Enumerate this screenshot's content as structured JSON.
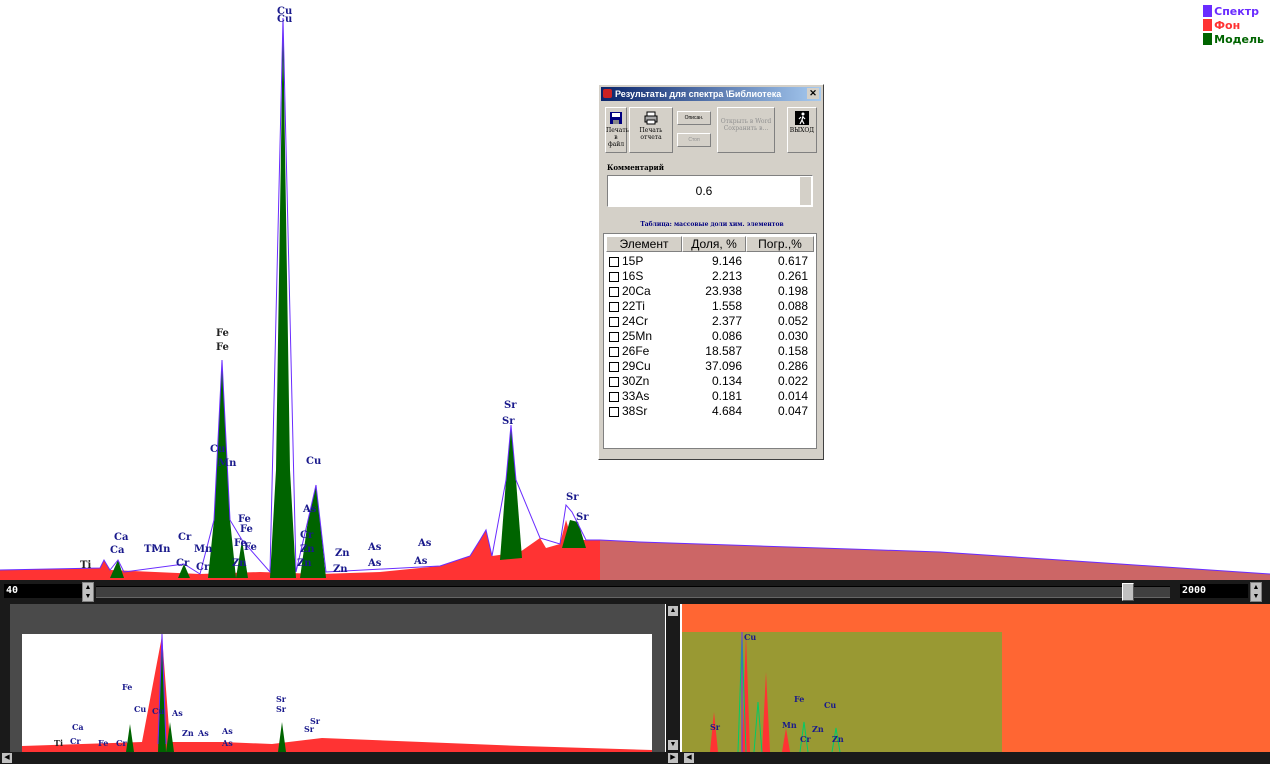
{
  "legend": [
    {
      "label": "Спектр",
      "color": "#6a2cff"
    },
    {
      "label": "Фон",
      "color": "#ff3333"
    },
    {
      "label": "Модель",
      "color": "#006400"
    }
  ],
  "spectrum_labels": [
    "Cu",
    "Cu",
    "Fe",
    "Fe",
    "Cu",
    "Mn",
    "Cu",
    "As",
    "Cr",
    "Zn",
    "Zn",
    "Zn",
    "Zn",
    "As",
    "As",
    "As",
    "As",
    "Sr",
    "Sr",
    "Sr",
    "Sr",
    "Ca",
    "Ca",
    "Ti",
    "Cr",
    "Cr",
    "Ti",
    "Mn",
    "Mn",
    "Fe",
    "Fe",
    "Cr",
    "Zn",
    "Zn",
    "Fe",
    "Fe"
  ],
  "scroll": {
    "left_value": "40",
    "right_value": "2000"
  },
  "dialog": {
    "title": "Результаты для спектра \\Библиотека",
    "close": "✕",
    "btn_save": "Печать в файл",
    "btn_print": "Печать отчета",
    "btn_small1": "Описан.",
    "btn_small2": "Стоп",
    "btn_disabled": "Открыть в Word",
    "btn_disabled2": "Сохранить в...",
    "btn_exit": "ВЫХОД",
    "comment_label": "Комментарий",
    "comment_value": "0.6",
    "table_title": "Таблица: массовые доли хим. элементов",
    "headers": [
      "Элемент",
      "Доля, %",
      "Погр.,%"
    ],
    "rows": [
      [
        "15P",
        "9.146",
        "0.617"
      ],
      [
        "16S",
        "2.213",
        "0.261"
      ],
      [
        "20Ca",
        "23.938",
        "0.198"
      ],
      [
        "22Ti",
        "1.558",
        "0.088"
      ],
      [
        "24Cr",
        "2.377",
        "0.052"
      ],
      [
        "25Mn",
        "0.086",
        "0.030"
      ],
      [
        "26Fe",
        "18.587",
        "0.158"
      ],
      [
        "29Cu",
        "37.096",
        "0.286"
      ],
      [
        "30Zn",
        "0.134",
        "0.022"
      ],
      [
        "33As",
        "0.181",
        "0.014"
      ],
      [
        "38Sr",
        "4.684",
        "0.047"
      ]
    ]
  },
  "left_pane_labels": [
    "Cu",
    "Fe",
    "Cu",
    "Cu",
    "As",
    "Sr",
    "Sr",
    "Sr",
    "Sr",
    "Ca",
    "Ti",
    "Cr",
    "Fe",
    "Cr",
    "Zn",
    "As",
    "As",
    "As"
  ],
  "right_pane_labels": [
    "Cu",
    "Cu",
    "Fe",
    "Cu",
    "Mn",
    "Zn",
    "Cr",
    "Zn",
    "Sr"
  ]
}
